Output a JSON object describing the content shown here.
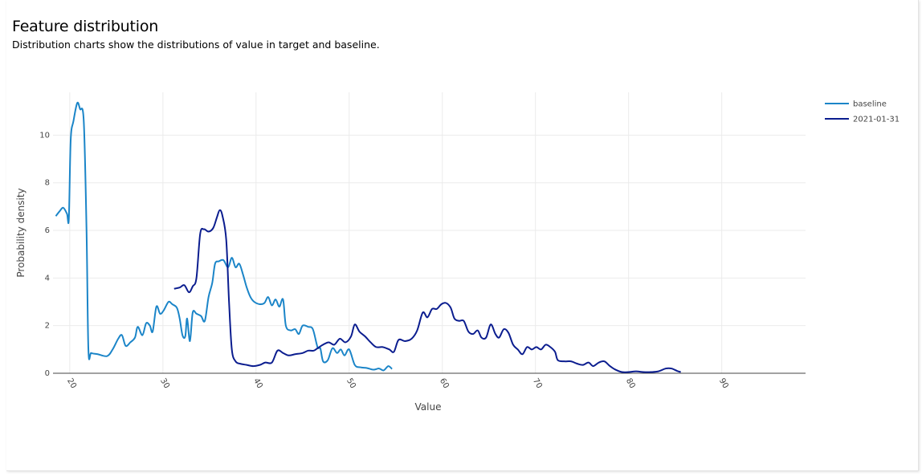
{
  "header": {
    "title": "Feature distribution",
    "subtitle": "Distribution charts show the distributions of value in target and baseline."
  },
  "chart_data": {
    "type": "line",
    "xlabel": "Value",
    "ylabel": "Probability density",
    "xlim": [
      18.2,
      99
    ],
    "ylim": [
      0,
      11.8
    ],
    "x_ticks": [
      "20",
      "30",
      "40",
      "50",
      "60",
      "70",
      "80",
      "90"
    ],
    "y_ticks": [
      "0",
      "2",
      "4",
      "6",
      "8",
      "10"
    ],
    "grid": true,
    "legend_position": "top-right",
    "series": [
      {
        "name": "baseline",
        "color": "#1b85c8",
        "points": [
          [
            18.5,
            6.6
          ],
          [
            18.9,
            6.8
          ],
          [
            19.3,
            6.95
          ],
          [
            19.7,
            6.7
          ],
          [
            19.9,
            6.5
          ],
          [
            20.1,
            9.8
          ],
          [
            20.4,
            10.6
          ],
          [
            20.8,
            11.35
          ],
          [
            21.1,
            11.1
          ],
          [
            21.5,
            10.6
          ],
          [
            21.8,
            6.0
          ],
          [
            22.0,
            1.0
          ],
          [
            22.3,
            0.85
          ],
          [
            23.0,
            0.8
          ],
          [
            24.0,
            0.72
          ],
          [
            24.6,
            1.0
          ],
          [
            25.2,
            1.45
          ],
          [
            25.6,
            1.6
          ],
          [
            26.0,
            1.15
          ],
          [
            26.5,
            1.3
          ],
          [
            27.0,
            1.5
          ],
          [
            27.3,
            1.95
          ],
          [
            27.8,
            1.6
          ],
          [
            28.2,
            2.1
          ],
          [
            28.6,
            2.0
          ],
          [
            28.9,
            1.75
          ],
          [
            29.3,
            2.8
          ],
          [
            29.7,
            2.5
          ],
          [
            30.1,
            2.65
          ],
          [
            30.6,
            3.0
          ],
          [
            31.0,
            2.9
          ],
          [
            31.5,
            2.75
          ],
          [
            31.8,
            2.3
          ],
          [
            32.1,
            1.6
          ],
          [
            32.4,
            1.55
          ],
          [
            32.6,
            2.3
          ],
          [
            32.9,
            1.35
          ],
          [
            33.2,
            2.55
          ],
          [
            33.6,
            2.5
          ],
          [
            34.1,
            2.4
          ],
          [
            34.5,
            2.2
          ],
          [
            34.9,
            3.2
          ],
          [
            35.3,
            3.8
          ],
          [
            35.6,
            4.6
          ],
          [
            36.0,
            4.7
          ],
          [
            36.5,
            4.75
          ],
          [
            37.0,
            4.45
          ],
          [
            37.4,
            4.85
          ],
          [
            37.8,
            4.45
          ],
          [
            38.2,
            4.6
          ],
          [
            38.6,
            4.15
          ],
          [
            39.0,
            3.6
          ],
          [
            39.4,
            3.2
          ],
          [
            39.8,
            3.0
          ],
          [
            40.4,
            2.9
          ],
          [
            40.9,
            2.95
          ],
          [
            41.3,
            3.2
          ],
          [
            41.7,
            2.85
          ],
          [
            42.1,
            3.1
          ],
          [
            42.5,
            2.8
          ],
          [
            42.9,
            3.1
          ],
          [
            43.2,
            2.0
          ],
          [
            43.7,
            1.8
          ],
          [
            44.2,
            1.85
          ],
          [
            44.6,
            1.65
          ],
          [
            45.0,
            2.0
          ],
          [
            45.6,
            1.95
          ],
          [
            46.1,
            1.85
          ],
          [
            46.6,
            1.1
          ],
          [
            46.9,
            1.05
          ],
          [
            47.2,
            0.5
          ],
          [
            47.7,
            0.55
          ],
          [
            48.2,
            1.05
          ],
          [
            48.7,
            0.85
          ],
          [
            49.1,
            1.0
          ],
          [
            49.5,
            0.75
          ],
          [
            50.0,
            1.0
          ],
          [
            50.6,
            0.35
          ],
          [
            51.2,
            0.25
          ],
          [
            51.9,
            0.22
          ],
          [
            52.6,
            0.15
          ],
          [
            53.2,
            0.2
          ],
          [
            53.7,
            0.12
          ],
          [
            54.2,
            0.3
          ],
          [
            54.6,
            0.18
          ]
        ]
      },
      {
        "name": "2021-01-31",
        "color": "#0b1d8f",
        "points": [
          [
            31.2,
            3.55
          ],
          [
            31.8,
            3.6
          ],
          [
            32.3,
            3.7
          ],
          [
            32.8,
            3.4
          ],
          [
            33.2,
            3.65
          ],
          [
            33.6,
            4.0
          ],
          [
            34.0,
            5.85
          ],
          [
            34.4,
            6.05
          ],
          [
            34.9,
            5.95
          ],
          [
            35.4,
            6.1
          ],
          [
            35.8,
            6.55
          ],
          [
            36.1,
            6.85
          ],
          [
            36.4,
            6.6
          ],
          [
            36.8,
            5.6
          ],
          [
            37.1,
            3.0
          ],
          [
            37.4,
            1.0
          ],
          [
            37.8,
            0.5
          ],
          [
            38.3,
            0.4
          ],
          [
            39.0,
            0.35
          ],
          [
            39.7,
            0.3
          ],
          [
            40.4,
            0.35
          ],
          [
            41.0,
            0.45
          ],
          [
            41.7,
            0.45
          ],
          [
            42.3,
            0.95
          ],
          [
            42.9,
            0.85
          ],
          [
            43.5,
            0.75
          ],
          [
            44.2,
            0.8
          ],
          [
            45.0,
            0.85
          ],
          [
            45.6,
            0.95
          ],
          [
            46.2,
            0.95
          ],
          [
            46.6,
            1.05
          ],
          [
            47.2,
            1.2
          ],
          [
            47.8,
            1.3
          ],
          [
            48.4,
            1.2
          ],
          [
            49.0,
            1.45
          ],
          [
            49.6,
            1.3
          ],
          [
            50.2,
            1.55
          ],
          [
            50.6,
            2.05
          ],
          [
            51.1,
            1.75
          ],
          [
            51.7,
            1.55
          ],
          [
            52.3,
            1.3
          ],
          [
            52.9,
            1.1
          ],
          [
            53.6,
            1.1
          ],
          [
            54.3,
            1.0
          ],
          [
            54.8,
            0.9
          ],
          [
            55.3,
            1.4
          ],
          [
            56.0,
            1.35
          ],
          [
            56.7,
            1.45
          ],
          [
            57.3,
            1.8
          ],
          [
            57.9,
            2.55
          ],
          [
            58.4,
            2.35
          ],
          [
            58.9,
            2.7
          ],
          [
            59.4,
            2.7
          ],
          [
            59.9,
            2.9
          ],
          [
            60.4,
            2.95
          ],
          [
            60.9,
            2.75
          ],
          [
            61.3,
            2.3
          ],
          [
            61.8,
            2.2
          ],
          [
            62.3,
            2.2
          ],
          [
            62.8,
            1.75
          ],
          [
            63.3,
            1.65
          ],
          [
            63.8,
            1.8
          ],
          [
            64.2,
            1.5
          ],
          [
            64.7,
            1.5
          ],
          [
            65.2,
            2.05
          ],
          [
            65.7,
            1.65
          ],
          [
            66.1,
            1.5
          ],
          [
            66.6,
            1.85
          ],
          [
            67.1,
            1.7
          ],
          [
            67.6,
            1.2
          ],
          [
            68.1,
            1.0
          ],
          [
            68.6,
            0.8
          ],
          [
            69.1,
            1.1
          ],
          [
            69.6,
            1.0
          ],
          [
            70.1,
            1.1
          ],
          [
            70.6,
            1.0
          ],
          [
            71.1,
            1.2
          ],
          [
            71.6,
            1.1
          ],
          [
            72.1,
            0.9
          ],
          [
            72.4,
            0.55
          ],
          [
            73.1,
            0.5
          ],
          [
            73.8,
            0.5
          ],
          [
            74.5,
            0.4
          ],
          [
            75.1,
            0.35
          ],
          [
            75.7,
            0.45
          ],
          [
            76.2,
            0.3
          ],
          [
            76.8,
            0.45
          ],
          [
            77.4,
            0.5
          ],
          [
            78.0,
            0.3
          ],
          [
            78.6,
            0.15
          ],
          [
            79.3,
            0.05
          ],
          [
            80.0,
            0.05
          ],
          [
            80.8,
            0.08
          ],
          [
            81.6,
            0.05
          ],
          [
            82.4,
            0.05
          ],
          [
            83.2,
            0.08
          ],
          [
            84.0,
            0.2
          ],
          [
            84.6,
            0.2
          ],
          [
            85.2,
            0.1
          ],
          [
            85.6,
            0.05
          ]
        ]
      }
    ]
  }
}
